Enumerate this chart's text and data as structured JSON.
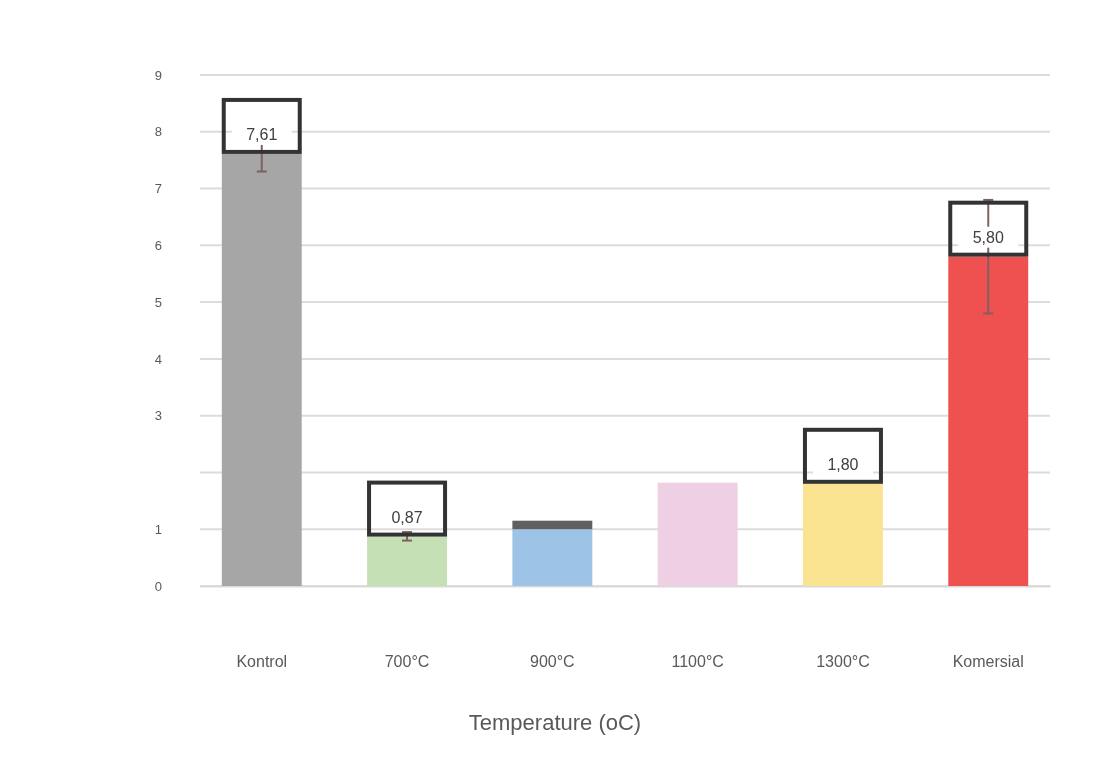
{
  "chart_data": {
    "type": "bar",
    "stacked": true,
    "xlabel": "Temperature (oC)",
    "categories": [
      "Kontrol",
      "700°C",
      "900°C",
      "1100°C",
      "1300°C",
      "Komersial"
    ],
    "series": [
      {
        "colors": [
          "#a6a6a6",
          "#c5e0b4",
          "#9dc3e6",
          "#efcfe3",
          "#fae391",
          "#ef5050"
        ],
        "values": [
          7.61,
          0.87,
          1.0,
          1.82,
          1.8,
          5.8
        ],
        "value_labels": [
          "7,61",
          "0,87",
          null,
          null,
          "1,80",
          "5,80"
        ],
        "errors": [
          [
            7.3,
            7.9
          ],
          [
            0.8,
            0.95
          ],
          null,
          null,
          null,
          [
            4.8,
            6.8
          ]
        ]
      },
      {
        "color": "#606060",
        "values": [
          null,
          null,
          0.15,
          null,
          null,
          null
        ]
      }
    ],
    "ylim": [
      0,
      9
    ],
    "yticks": [
      0,
      1,
      {
        "value": 2,
        "label": null
      },
      3,
      4,
      5,
      6,
      7,
      8,
      9
    ],
    "grid": "y"
  }
}
